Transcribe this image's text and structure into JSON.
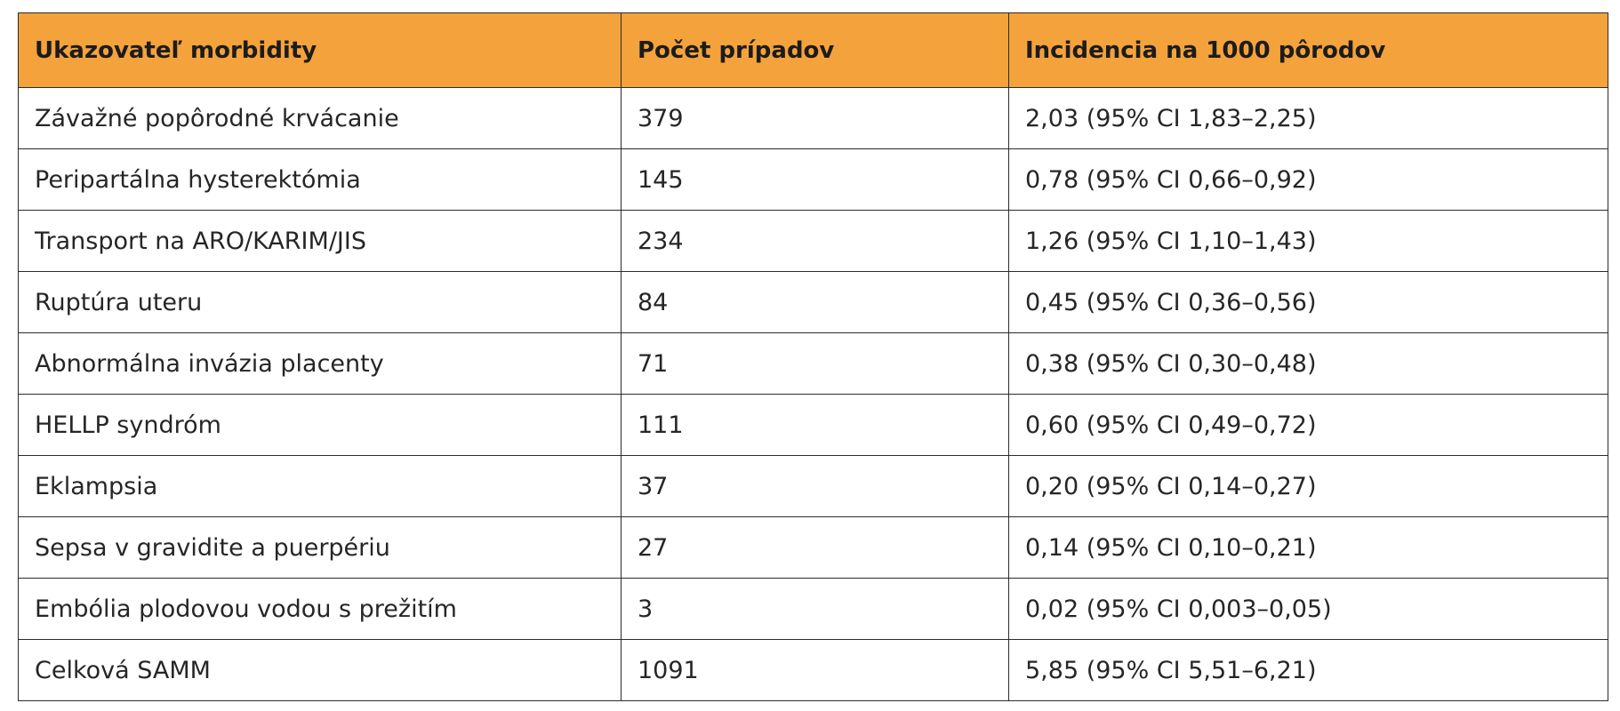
{
  "colors": {
    "header_background": "#f4a23c",
    "border": "#2b2b2b",
    "text": "#262626"
  },
  "table": {
    "headers": [
      "Ukazovateľ morbidity",
      "Počet prípadov",
      "Incidencia na 1000 pôrodov"
    ],
    "rows": [
      {
        "indicator": "Závažné popôrodné krvácanie",
        "cases": "379",
        "incidence": "2,03 (95% CI 1,83–2,25)"
      },
      {
        "indicator": "Peripartálna hysterektómia",
        "cases": "145",
        "incidence": "0,78 (95% CI 0,66–0,92)"
      },
      {
        "indicator": "Transport na ARO/KARIM/JIS",
        "cases": "234",
        "incidence": "1,26 (95% CI 1,10–1,43)"
      },
      {
        "indicator": "Ruptúra uteru",
        "cases": "84",
        "incidence": "0,45 (95% CI 0,36–0,56)"
      },
      {
        "indicator": "Abnormálna invázia placenty",
        "cases": "71",
        "incidence": "0,38 (95% CI 0,30–0,48)"
      },
      {
        "indicator": "HELLP syndróm",
        "cases": "111",
        "incidence": "0,60 (95% CI 0,49–0,72)"
      },
      {
        "indicator": "Eklampsia",
        "cases": "37",
        "incidence": "0,20 (95% CI 0,14–0,27)"
      },
      {
        "indicator": "Sepsa v gravidite a puerpériu",
        "cases": "27",
        "incidence": "0,14 (95% CI 0,10–0,21)"
      },
      {
        "indicator": "Embólia plodovou vodou  s prežitím",
        "cases": "3",
        "incidence": "0,02 (95% CI 0,003–0,05)"
      },
      {
        "indicator": "Celková SAMM",
        "cases": "1091",
        "incidence": "5,85 (95% CI 5,51–6,21)"
      }
    ]
  }
}
